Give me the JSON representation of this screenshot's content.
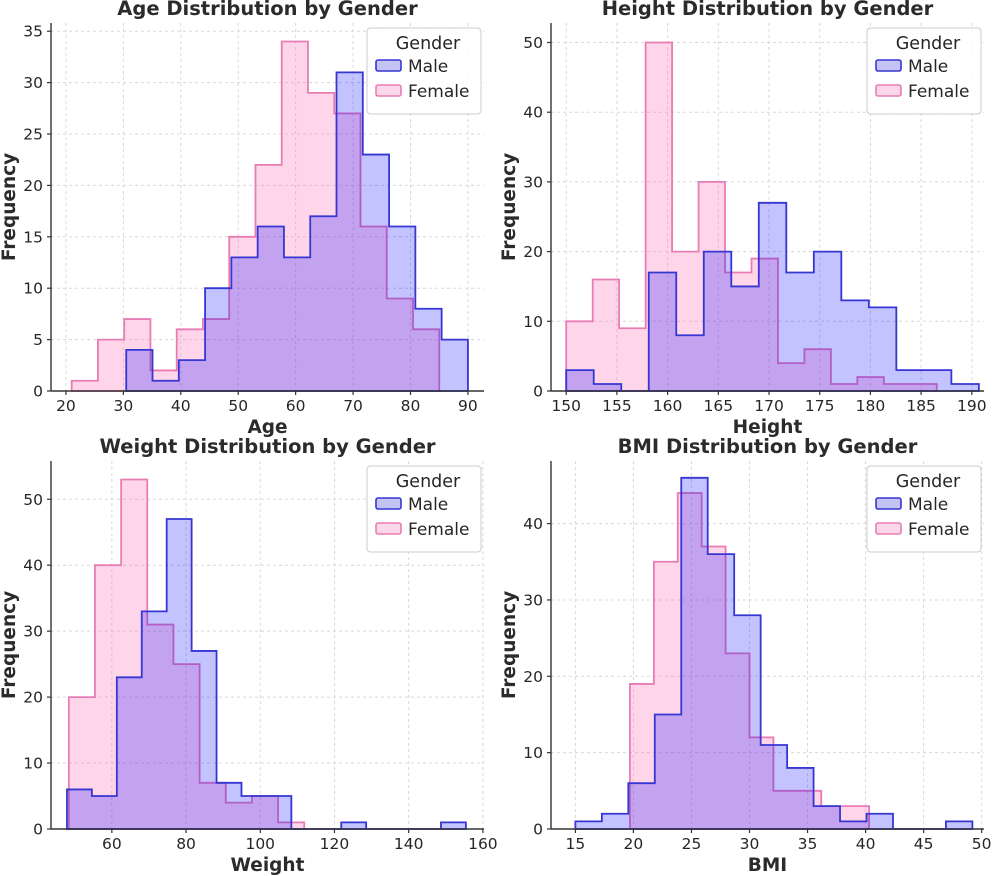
{
  "figure": {
    "background": "#ffffff",
    "rows": 2,
    "cols": 2,
    "description": "Four overlapping step histograms comparing Male and Female distributions"
  },
  "palette": {
    "male_fill": "rgba(0,0,255,0.235)",
    "male_edge": "#3636d3",
    "male_swatch_fill": "#c4c4f4",
    "female_fill": "rgba(255,105,180,0.28)",
    "female_edge": "#e87db5",
    "female_swatch_fill": "#fcd7e9",
    "grid_color": "#d8d8d8",
    "spine_color": "#333333",
    "text_color": "#262626",
    "legend_border": "#cccccc",
    "legend_background": "#ffffff"
  },
  "legend": {
    "title": "Gender",
    "position": "upper right",
    "items": [
      {
        "label": "Male",
        "key": "male"
      },
      {
        "label": "Female",
        "key": "female"
      }
    ]
  },
  "chart_data": [
    {
      "type": "histogram",
      "id": "age",
      "title": "Age Distribution by Gender",
      "xlabel": "Age",
      "ylabel": "Frequency",
      "xlim": [
        17.4,
        92.8
      ],
      "ylim": [
        0,
        35.8
      ],
      "xticks": [
        20,
        30,
        40,
        50,
        60,
        70,
        80,
        90
      ],
      "yticks": [
        0,
        5,
        10,
        15,
        20,
        25,
        30,
        35
      ],
      "grid": true,
      "series": [
        {
          "name": "Female",
          "key": "female",
          "bin_start": 21.0,
          "bin_width": 4.572,
          "counts": [
            1,
            5,
            7,
            2,
            6,
            7,
            15,
            22,
            34,
            29,
            27,
            16,
            9,
            6
          ]
        },
        {
          "name": "Male",
          "key": "male",
          "bin_start": 30.5,
          "bin_width": 4.577,
          "counts": [
            4,
            1,
            3,
            10,
            13,
            16,
            13,
            17,
            31,
            23,
            16,
            8,
            5
          ]
        }
      ]
    },
    {
      "type": "histogram",
      "id": "height",
      "title": "Height Distribution by Gender",
      "xlabel": "Height",
      "ylabel": "Frequency",
      "xlim": [
        148.5,
        191.2
      ],
      "ylim": [
        0,
        52.8
      ],
      "xticks": [
        150,
        155,
        160,
        165,
        170,
        175,
        180,
        185,
        190
      ],
      "yticks": [
        0,
        10,
        20,
        30,
        40,
        50
      ],
      "grid": true,
      "series": [
        {
          "name": "Female",
          "key": "female",
          "bin_start": 150.0,
          "bin_width": 2.61,
          "counts": [
            10,
            16,
            9,
            50,
            20,
            30,
            17,
            19,
            4,
            6,
            1,
            2,
            1,
            1
          ]
        },
        {
          "name": "Male",
          "key": "male",
          "bin_start": 150.0,
          "bin_width": 2.713,
          "counts": [
            3,
            1,
            0,
            17,
            8,
            20,
            15,
            27,
            17,
            20,
            13,
            12,
            3,
            3,
            1
          ]
        }
      ]
    },
    {
      "type": "histogram",
      "id": "weight",
      "title": "Weight Distribution by Gender",
      "xlabel": "Weight",
      "ylabel": "Frequency",
      "xlim": [
        43.6,
        160.3
      ],
      "ylim": [
        0,
        55.8
      ],
      "xticks": [
        60,
        80,
        100,
        120,
        140,
        160
      ],
      "yticks": [
        0,
        10,
        20,
        30,
        40,
        50
      ],
      "grid": true,
      "series": [
        {
          "name": "Female",
          "key": "female",
          "bin_start": 48.4,
          "bin_width": 7.05,
          "counts": [
            20,
            40,
            53,
            31,
            25,
            7,
            4,
            5,
            1
          ]
        },
        {
          "name": "Male",
          "key": "male",
          "bin_start": 47.9,
          "bin_width": 6.72,
          "counts": [
            6,
            5,
            23,
            33,
            47,
            27,
            7,
            5,
            5,
            0,
            0,
            1,
            0,
            0,
            0,
            1
          ]
        }
      ]
    },
    {
      "type": "histogram",
      "id": "bmi",
      "title": "BMI Distribution by Gender",
      "xlabel": "BMI",
      "ylabel": "Frequency",
      "xlim": [
        12.9,
        50.2
      ],
      "ylim": [
        0,
        48.2
      ],
      "xticks": [
        15,
        20,
        25,
        30,
        35,
        40,
        45,
        50
      ],
      "yticks": [
        0,
        10,
        20,
        30,
        40
      ],
      "grid": true,
      "series": [
        {
          "name": "Female",
          "key": "female",
          "bin_start": 19.7,
          "bin_width": 2.06,
          "counts": [
            19,
            35,
            44,
            37,
            23,
            12,
            5,
            5,
            3,
            3
          ]
        },
        {
          "name": "Male",
          "key": "male",
          "bin_start": 15.0,
          "bin_width": 2.28,
          "counts": [
            1,
            2,
            6,
            15,
            46,
            36,
            28,
            11,
            8,
            3,
            1,
            2,
            0,
            0,
            1
          ]
        }
      ]
    }
  ]
}
